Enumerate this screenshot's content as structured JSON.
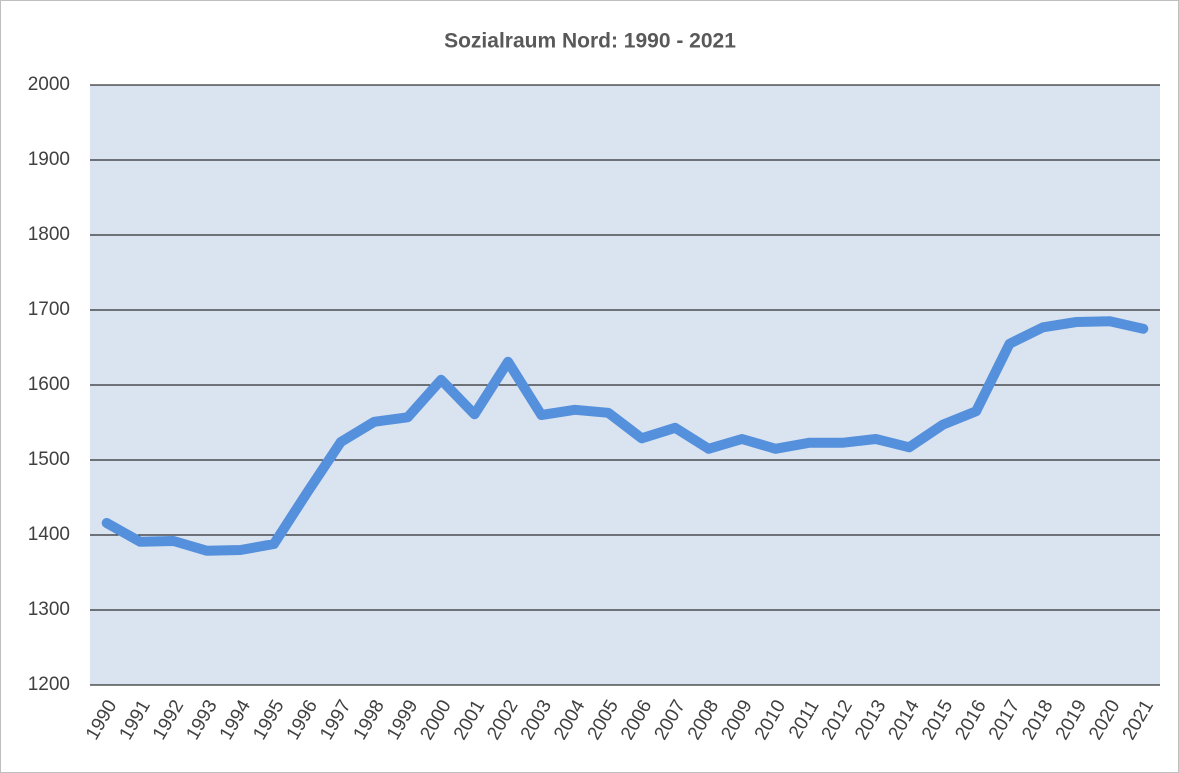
{
  "chart_data": {
    "type": "line",
    "title": "Sozialraum  Nord: 1990 - 2021",
    "categories": [
      "1990",
      "1991",
      "1992",
      "1993",
      "1994",
      "1995",
      "1996",
      "1997",
      "1998",
      "1999",
      "2000",
      "2001",
      "2002",
      "2003",
      "2004",
      "2005",
      "2006",
      "2007",
      "2008",
      "2009",
      "2010",
      "2011",
      "2012",
      "2013",
      "2014",
      "2015",
      "2016",
      "2017",
      "2018",
      "2019",
      "2020",
      "2021"
    ],
    "values": [
      1416,
      1391,
      1392,
      1379,
      1380,
      1388,
      1457,
      1524,
      1551,
      1557,
      1607,
      1561,
      1631,
      1560,
      1567,
      1563,
      1529,
      1543,
      1515,
      1528,
      1515,
      1523,
      1523,
      1528,
      1517,
      1547,
      1565,
      1655,
      1677,
      1684,
      1685,
      1675
    ],
    "color": "#5590dc",
    "ylim": [
      1200,
      2000
    ],
    "yticks": [
      1200,
      1300,
      1400,
      1500,
      1600,
      1700,
      1800,
      1900,
      2000
    ],
    "grid": true
  }
}
